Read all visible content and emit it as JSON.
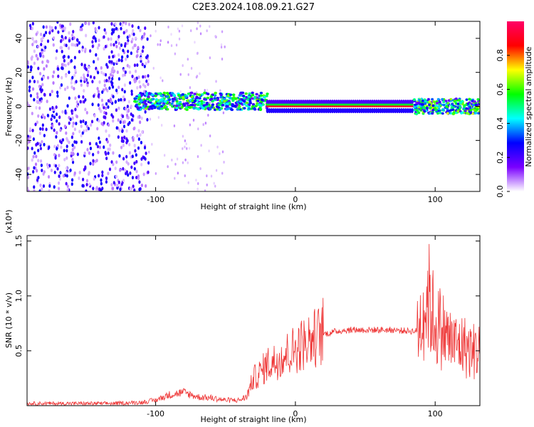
{
  "title": "C2E3.2024.108.09.21.G27",
  "chart_data": [
    {
      "type": "heatmap",
      "xlabel": "Height of straight line (km)",
      "ylabel": "Frequency (Hz)",
      "xlim": [
        -192,
        132
      ],
      "ylim": [
        -50,
        50
      ],
      "xticks": [
        -100,
        0,
        100
      ],
      "xtick_labels": [
        "-100",
        "0",
        "100"
      ],
      "yticks": [
        -40,
        -20,
        0,
        20,
        40
      ],
      "ytick_labels": [
        "-40",
        "-20",
        "0",
        "20",
        "40"
      ],
      "colorbar": {
        "label": "Normalized spectral amplitude",
        "range": [
          0,
          1
        ],
        "ticks": [
          0.0,
          0.2,
          0.4,
          0.6,
          0.8
        ],
        "tick_labels": [
          "0.0",
          "0.2",
          "0.4",
          "0.6",
          "0.8"
        ],
        "colormap": [
          "#ffffff",
          "#7a00ff",
          "#0000ff",
          "#00ffff",
          "#00ff00",
          "#ffff00",
          "#ff0000",
          "#ff0066"
        ]
      },
      "regions": [
        {
          "x_range": [
            -192,
            -115
          ],
          "description_level": 0.25
        },
        {
          "x_range": [
            -115,
            -20
          ],
          "center_freq": 3,
          "level": 0.45
        },
        {
          "x_range": [
            -20,
            85
          ],
          "center_freq": 0,
          "level": 0.9
        },
        {
          "x_range": [
            85,
            132
          ],
          "center_freq": 0,
          "level": 0.5
        }
      ]
    },
    {
      "type": "line",
      "xlabel": "Height of straight line (km)",
      "ylabel": "SNR (10 * v/v)",
      "y_scale_label": "(x10⁴)",
      "xlim": [
        -192,
        132
      ],
      "ylim": [
        0,
        1.55
      ],
      "xticks": [
        -100,
        0,
        100
      ],
      "xtick_labels": [
        "-100",
        "0",
        "100"
      ],
      "yticks": [
        0.5,
        1.0,
        1.5
      ],
      "ytick_labels": [
        "0.5",
        "1.0",
        "1.5"
      ],
      "color": "#ee3333",
      "series": [
        {
          "x": [
            -192,
            -160,
            -130,
            -110,
            -100,
            -90,
            -80,
            -70,
            -60,
            -50,
            -40,
            -35,
            -30,
            -25,
            -20,
            -15,
            -10,
            -5,
            0,
            10,
            20,
            30,
            40,
            50,
            60,
            70,
            80,
            87,
            90,
            95,
            100,
            105,
            110,
            115,
            120,
            125,
            132
          ],
          "values": [
            0.02,
            0.02,
            0.02,
            0.03,
            0.05,
            0.1,
            0.12,
            0.08,
            0.07,
            0.05,
            0.05,
            0.08,
            0.25,
            0.3,
            0.38,
            0.4,
            0.45,
            0.48,
            0.52,
            0.6,
            0.65,
            0.68,
            0.69,
            0.69,
            0.69,
            0.69,
            0.68,
            0.68,
            0.8,
            1.0,
            0.75,
            0.7,
            0.6,
            0.55,
            0.55,
            0.5,
            0.5
          ]
        }
      ]
    }
  ]
}
